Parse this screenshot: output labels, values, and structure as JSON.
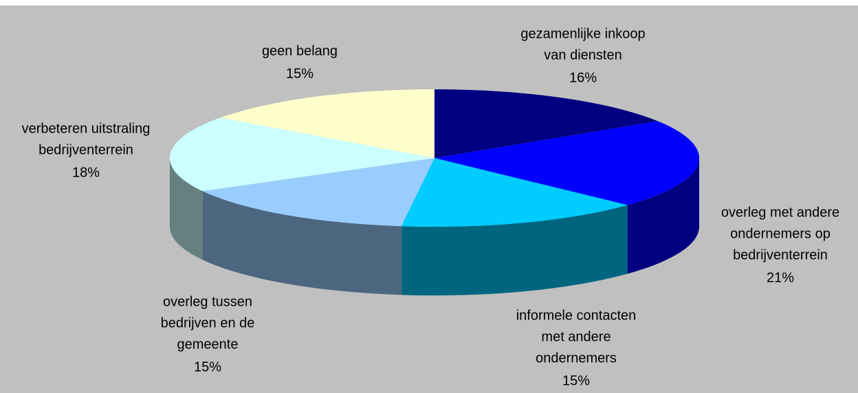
{
  "chart_data": {
    "type": "pie3d",
    "categories": [
      [
        "gezamenlijke inkoop",
        "van diensten"
      ],
      [
        "overleg met andere",
        "ondernemers op",
        "bedrijventerrein"
      ],
      [
        "informele contacten",
        "met andere",
        "ondernemers"
      ],
      [
        "overleg tussen",
        "bedrijven en de",
        "gemeente"
      ],
      [
        "verbeteren uitstraling",
        "bedrijventerrein"
      ],
      [
        "geen belang"
      ]
    ],
    "values": [
      16,
      21,
      15,
      15,
      18,
      15
    ],
    "value_labels": [
      "16%",
      "21%",
      "15%",
      "15%",
      "18%",
      "15%"
    ],
    "colors": [
      "#000080",
      "#0000ff",
      "#00ccff",
      "#99ccff",
      "#ccffff",
      "#ffffcc"
    ]
  }
}
